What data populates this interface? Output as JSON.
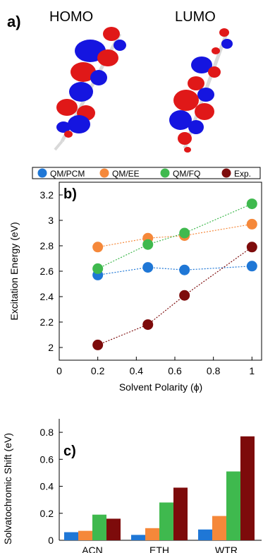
{
  "colors": {
    "qm_pcm": "#1f77d6",
    "qm_ee": "#f5883a",
    "qm_fq": "#3fb94e",
    "exp": "#7d0b0b",
    "orbital_positive": "#e01818",
    "orbital_negative": "#1515e0",
    "molecule_bond": "#d9d9d9"
  },
  "panel_a": {
    "label": "a)",
    "homo_title": "HOMO",
    "lumo_title": "LUMO"
  },
  "legend": {
    "placement": "top",
    "items": [
      {
        "label": "QM/PCM",
        "color_key": "qm_pcm"
      },
      {
        "label": "QM/EE",
        "color_key": "qm_ee"
      },
      {
        "label": "QM/FQ",
        "color_key": "qm_fq"
      },
      {
        "label": "Exp.",
        "color_key": "exp"
      }
    ]
  },
  "chart_data": [
    {
      "panel": "b)",
      "type": "scatter",
      "xlabel": "Solvent Polarity (ϕ)",
      "ylabel": "Excitation Energy (eV)",
      "xlim": [
        0,
        1.05
      ],
      "ylim": [
        1.9,
        3.3
      ],
      "xticks": [
        0,
        0.2,
        0.4,
        0.6,
        0.8,
        1
      ],
      "xtick_labels": [
        "0",
        "0.2",
        "0.4",
        "0.6",
        "0.8",
        "1"
      ],
      "yticks": [
        2,
        2.2,
        2.4,
        2.6,
        2.8,
        3,
        3.2
      ],
      "ytick_labels": [
        "2",
        "2.2",
        "2.4",
        "2.6",
        "2.8",
        "3",
        "3.2"
      ],
      "grid": false,
      "connector": "dotted",
      "x": [
        0.2,
        0.46,
        0.65,
        1.0
      ],
      "series": [
        {
          "name": "QM/PCM",
          "color_key": "qm_pcm",
          "values": [
            2.57,
            2.63,
            2.61,
            2.64
          ]
        },
        {
          "name": "QM/EE",
          "color_key": "qm_ee",
          "values": [
            2.79,
            2.86,
            2.88,
            2.97
          ]
        },
        {
          "name": "QM/FQ",
          "color_key": "qm_fq",
          "values": [
            2.62,
            2.81,
            2.9,
            3.13
          ]
        },
        {
          "name": "Exp.",
          "color_key": "exp",
          "values": [
            2.02,
            2.18,
            2.41,
            2.79
          ]
        }
      ]
    },
    {
      "panel": "c)",
      "type": "bar",
      "ylabel": "Solvatochromic Shift (eV)",
      "ylim": [
        0,
        0.9
      ],
      "yticks": [
        0,
        0.2,
        0.4,
        0.6,
        0.8
      ],
      "ytick_labels": [
        "0",
        "0.2",
        "0.4",
        "0.6",
        "0.8"
      ],
      "grid": false,
      "categories": [
        "ACN",
        "ETH",
        "WTR"
      ],
      "series": [
        {
          "name": "QM/PCM",
          "color_key": "qm_pcm",
          "values": [
            0.06,
            0.04,
            0.08
          ]
        },
        {
          "name": "QM/EE",
          "color_key": "qm_ee",
          "values": [
            0.07,
            0.09,
            0.18
          ]
        },
        {
          "name": "QM/FQ",
          "color_key": "qm_fq",
          "values": [
            0.19,
            0.28,
            0.51
          ]
        },
        {
          "name": "Exp.",
          "color_key": "exp",
          "values": [
            0.16,
            0.39,
            0.77
          ]
        }
      ]
    }
  ]
}
